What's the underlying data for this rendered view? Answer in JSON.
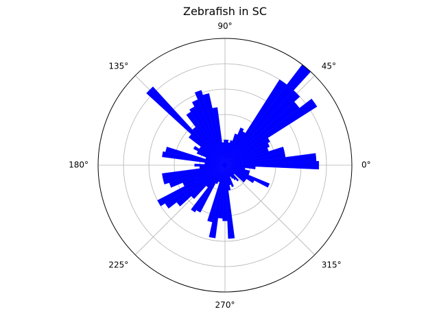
{
  "chart_data": {
    "type": "bar",
    "projection": "polar",
    "title": "Zebrafish in SC",
    "theta_tick_labels": [
      "0°",
      "45°",
      "90°",
      "135°",
      "180°",
      "225°",
      "270°",
      "315°"
    ],
    "theta_ticks_deg": [
      0,
      45,
      90,
      135,
      180,
      225,
      270,
      315
    ],
    "r_gridlines": [
      1,
      2,
      3,
      4
    ],
    "rlim": [
      0,
      5
    ],
    "r_tick_labels_shown": false,
    "grid": true,
    "bar_color": "#0000ff",
    "bin_width_deg": 5,
    "series": [
      {
        "theta_deg": [
          0,
          5,
          10,
          15,
          20,
          25,
          30,
          35,
          40,
          45,
          50,
          55,
          60,
          65,
          70,
          75,
          80,
          85,
          90,
          95,
          100,
          105,
          110,
          115,
          120,
          125,
          130,
          135,
          140,
          145,
          150,
          155,
          160,
          165,
          170,
          175,
          180,
          185,
          190,
          195,
          200,
          205,
          210,
          215,
          220,
          225,
          230,
          235,
          240,
          245,
          250,
          255,
          260,
          265,
          270,
          275,
          280,
          285,
          290,
          295,
          300,
          305,
          310,
          315,
          320,
          325,
          330,
          335,
          340,
          345,
          350,
          355
        ],
        "r": [
          3.7,
          3.6,
          2.4,
          2.4,
          1.8,
          1.9,
          2.0,
          4.3,
          3.7,
          4.0,
          5.0,
          4.0,
          1.5,
          1.6,
          1.3,
          1.0,
          0.9,
          1.0,
          1.0,
          0.9,
          2.3,
          2.9,
          3.1,
          2.8,
          2.6,
          2.5,
          1.9,
          4.2,
          1.8,
          1.2,
          1.4,
          1.2,
          0.8,
          2.4,
          2.5,
          0.8,
          1.2,
          1.0,
          2.5,
          2.5,
          2.3,
          1.8,
          3.0,
          2.8,
          2.4,
          1.8,
          1.1,
          2.2,
          2.1,
          0.8,
          0.7,
          2.3,
          2.9,
          2.1,
          2.2,
          2.9,
          1.0,
          0.8,
          0.9,
          0.5,
          0.6,
          0.7,
          0.8,
          0.5,
          1.0,
          1.0,
          1.3,
          1.9,
          1.0,
          1.0,
          0.8,
          1.2
        ]
      }
    ]
  }
}
